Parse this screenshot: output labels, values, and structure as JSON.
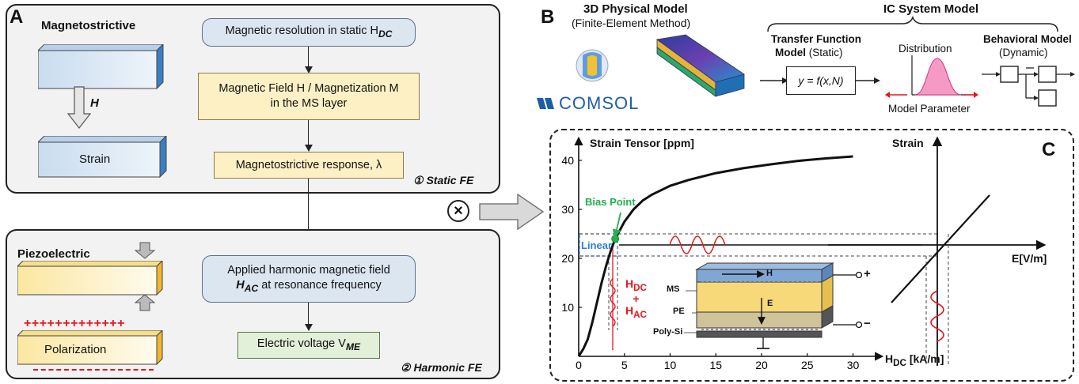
{
  "panelA": {
    "letter": "A",
    "static": {
      "title": "Magnetostrictive",
      "field_symbol": "H",
      "strain_label": "Strain",
      "step_label": "① Static FE",
      "box1": "Magnetic resolution in static H",
      "box1_sub": "DC",
      "box2_line1": "Magnetic Field H / Magnetization M",
      "box2_line2": "in the MS layer",
      "box3": "Magnetostrictive response, λ"
    },
    "harmonic": {
      "title": "Piezoelectric",
      "polarization_label": "Polarization",
      "step_label": "② Harmonic FE",
      "box1_line1": "Applied harmonic magnetic field",
      "box1_line2": "H",
      "box1_sub": "AC",
      "box1_line2_rest": " at resonance frequency",
      "box2": "Electric voltage V",
      "box2_sub": "ME",
      "plus_signs": "+++++++++++++"
    },
    "operator": "⊗"
  },
  "panelB": {
    "letter": "B",
    "physical_title": "3D Physical Model",
    "physical_subtitle": "(Finite-Element Method)",
    "comsol_logo": "COMSOL",
    "ic_title": "IC System Model",
    "tf_title_line1": "Transfer Function",
    "tf_title_line2": "Model",
    "tf_title_suffix": " (Static)",
    "tf_box": "y = f(x,N)",
    "dist_label": "Distribution",
    "model_param_label": "Model Parameter",
    "beh_title_line1": "Behavioral Model",
    "beh_title_line2": "(Dynamic)"
  },
  "panelC": {
    "letter": "C",
    "ylabel": "Strain Tensor [ppm]",
    "xlabel_main": "H",
    "xlabel_sub": "DC",
    "xlabel_unit": " [kA/m]",
    "right_ylabel": "Strain",
    "right_xlabel": "E[V/m]",
    "bias_label": "Bias Point",
    "linear_label": "Linear",
    "hdc_label": "H",
    "hdc_sub": "DC",
    "plus": "+",
    "hac_label": "H",
    "hac_sub": "AC",
    "stack": {
      "ms": "MS",
      "pe": "PE",
      "polysi": "Poly-Si",
      "h_arrow": "H",
      "e_arrow": "E",
      "plus": "+",
      "minus": "−"
    }
  },
  "chart_data": {
    "type": "line",
    "title": "",
    "xlabel": "HDC [kA/m]",
    "ylabel": "Strain Tensor [ppm]",
    "xlim": [
      0,
      32
    ],
    "ylim": [
      0,
      44
    ],
    "xticks": [
      "0",
      "5",
      "10",
      "15",
      "20",
      "25",
      "30"
    ],
    "yticks": [
      "10",
      "20",
      "30",
      "40"
    ],
    "series": [
      {
        "name": "",
        "x": [
          0,
          0.5,
          1,
          1.5,
          2,
          2.5,
          3,
          3.5,
          4,
          5,
          6,
          7,
          8,
          10,
          12,
          15,
          18,
          21,
          24,
          27,
          30
        ],
        "y": [
          0,
          1.5,
          3.5,
          7,
          11,
          15,
          18.5,
          21.5,
          24,
          27.5,
          30,
          31.8,
          33,
          34.8,
          36,
          37.4,
          38.4,
          39.2,
          39.9,
          40.4,
          40.8
        ]
      }
    ],
    "bias_point": {
      "x": 4,
      "y": 24
    },
    "grid": false
  },
  "colors": {
    "accent_red": "#e8141c",
    "bias_green": "#22b14c",
    "linear_blue": "#2f7fd8",
    "curve": "#111111"
  }
}
